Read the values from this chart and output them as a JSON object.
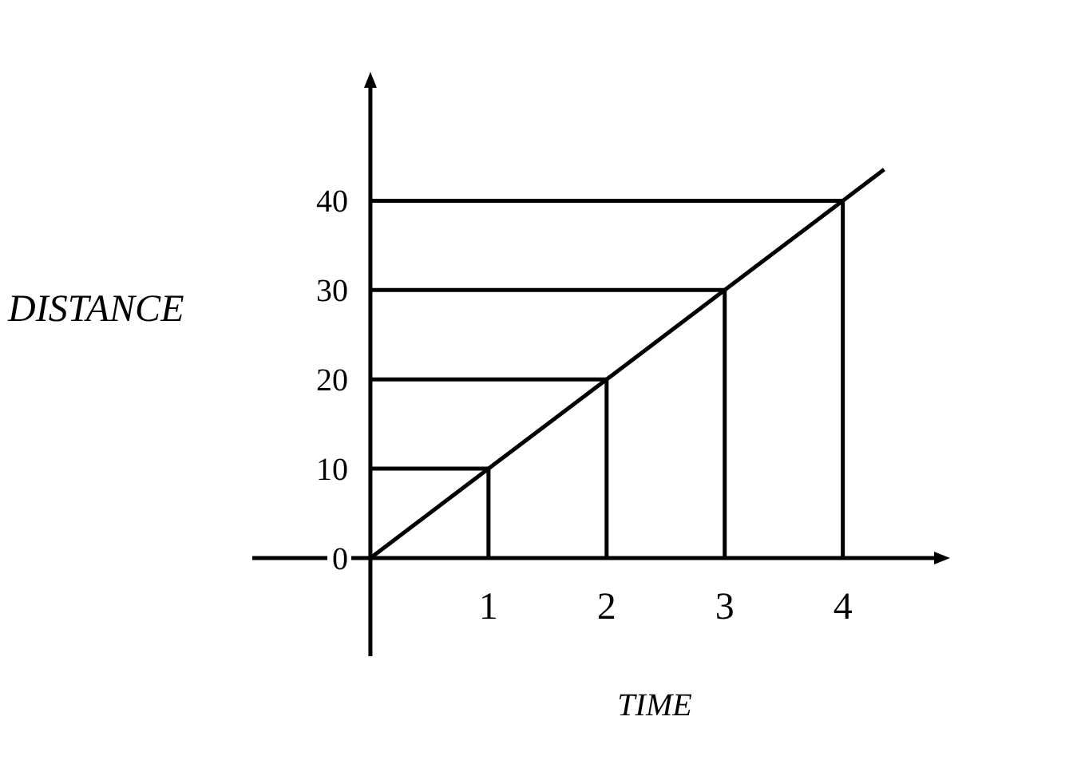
{
  "chart_data": {
    "type": "line",
    "xlabel": "TIME",
    "ylabel": "DISTANCE",
    "xlim": [
      -1,
      4.8
    ],
    "ylim": [
      -11,
      53
    ],
    "xticks": [
      1,
      2,
      3,
      4
    ],
    "yticks": [
      0,
      10,
      20,
      30,
      40
    ],
    "marker": "none",
    "line_style": "solid",
    "series": [
      {
        "color": "#000000",
        "x": [
          0,
          1,
          2,
          3,
          4,
          4.35
        ],
        "values": [
          0,
          10,
          20,
          30,
          40,
          43.5
        ]
      },
      {
        "color": "#000000",
        "x": [
          0,
          1,
          1
        ],
        "values": [
          10,
          10,
          0
        ]
      },
      {
        "color": "#000000",
        "x": [
          0,
          2,
          2
        ],
        "values": [
          20,
          20,
          0
        ]
      },
      {
        "color": "#000000",
        "x": [
          0,
          3,
          3
        ],
        "values": [
          30,
          30,
          0
        ]
      },
      {
        "color": "#000000",
        "x": [
          0,
          4,
          4
        ],
        "values": [
          40,
          40,
          0
        ]
      }
    ]
  }
}
